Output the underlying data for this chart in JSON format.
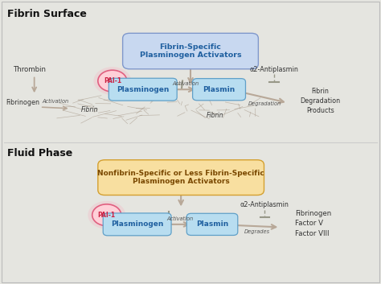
{
  "background_color": "#e5e5e0",
  "fig_width": 4.74,
  "fig_height": 3.53,
  "dpi": 100,
  "fibrin_surface_label": "Fibrin Surface",
  "fluid_phase_label": "Fluid Phase",
  "top_box_text": "Fibrin-Specific\nPlasminogen Activators",
  "top_box_facecolor": "#c8d8f0",
  "top_box_edgecolor": "#8098cc",
  "bottom_box_text": "Nonfibrin-Specific or Less Fibrin-Specific\nPlasminogen Activators",
  "bottom_box_facecolor": "#f8dfa0",
  "bottom_box_edgecolor": "#d4a030",
  "plasminogen_facecolor": "#b8ddf0",
  "plasminogen_edgecolor": "#60a0c8",
  "plasmin_facecolor": "#b8ddf0",
  "plasmin_edgecolor": "#60a0c8",
  "pai1_facecolor": "#f8b0c0",
  "pai1_edgecolor": "#e06080",
  "pai1_inner_facecolor": "#ffd0d8",
  "arrow_color": "#b8a898",
  "inhibit_color": "#989888",
  "text_dark": "#333333",
  "text_medium": "#555555",
  "text_blue": "#2060a0",
  "text_orange": "#7a4800",
  "thrombin_text": "Thrombin",
  "fibrinogen_text": "Fibrinogen",
  "activation_text": "Activation",
  "degradation_text": "Degradation",
  "fibrin_deg_text": "Fibrin\nDegradation\nProducts",
  "alpha2_text_top": "α2-Antiplasmin",
  "alpha2_text_bottom": "α2-Antiplasmin",
  "pai1_text": "PAI-1",
  "plasminogen_text": "Plasminogen",
  "plasmin_text": "Plasmin",
  "fibrin_text": "Fibrin",
  "degrades_text": "Degrades",
  "fibrinogen_factor_text": "Fibrinogen\nFactor V\nFactor VIII",
  "border_color": "#bbbbbb",
  "divider_color": "#cccccc"
}
